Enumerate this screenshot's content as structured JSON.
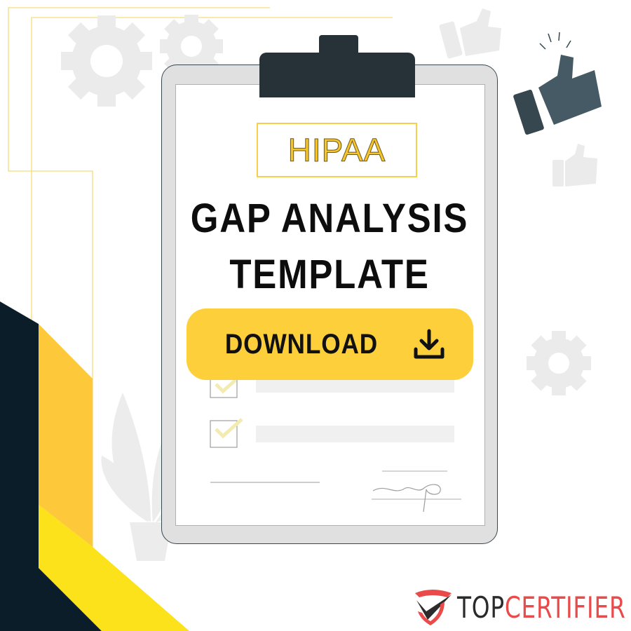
{
  "badge": {
    "text": "HIPAA"
  },
  "title": {
    "line1": "GAP ANALYSIS",
    "line2": "TEMPLATE"
  },
  "download": {
    "label": "DOWNLOAD",
    "icon": "download-icon"
  },
  "logo": {
    "part1": "TOP",
    "part2": "CERTIFIER"
  },
  "colors": {
    "accent_yellow": "#fdd03b",
    "dark_navy": "#0c1d2a",
    "clipboard_clip": "#263238",
    "brand_red": "#e94b4b",
    "brand_dark": "#2b2b2b"
  }
}
